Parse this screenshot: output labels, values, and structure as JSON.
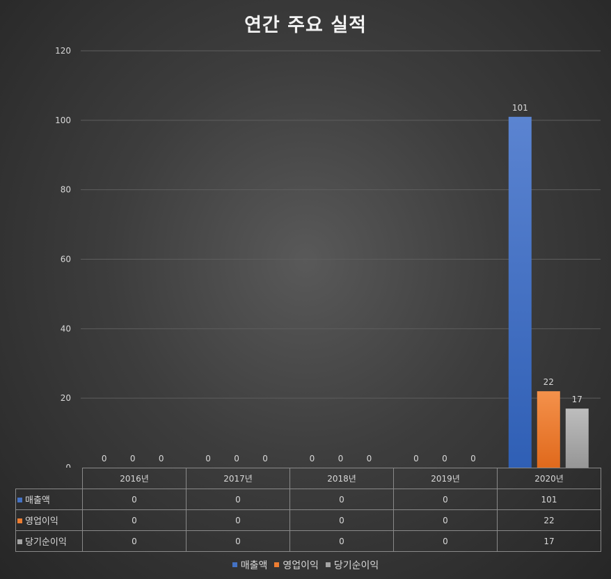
{
  "chart_data": {
    "type": "bar",
    "title": "연간 주요 실적",
    "categories": [
      "2016년",
      "2017년",
      "2018년",
      "2019년",
      "2020년"
    ],
    "series": [
      {
        "name": "매출액",
        "values": [
          0,
          0,
          0,
          0,
          101
        ],
        "color": "#4472c4"
      },
      {
        "name": "영업이익",
        "values": [
          0,
          0,
          0,
          0,
          22
        ],
        "color": "#ed7d31"
      },
      {
        "name": "당기순이익",
        "values": [
          0,
          0,
          0,
          0,
          17
        ],
        "color": "#a5a5a5"
      }
    ],
    "ylim": [
      0,
      120
    ],
    "yticks": [
      0,
      20,
      40,
      60,
      80,
      100,
      120
    ],
    "grid": true,
    "data_labels": true,
    "data_table": true,
    "legend_position": "bottom"
  }
}
